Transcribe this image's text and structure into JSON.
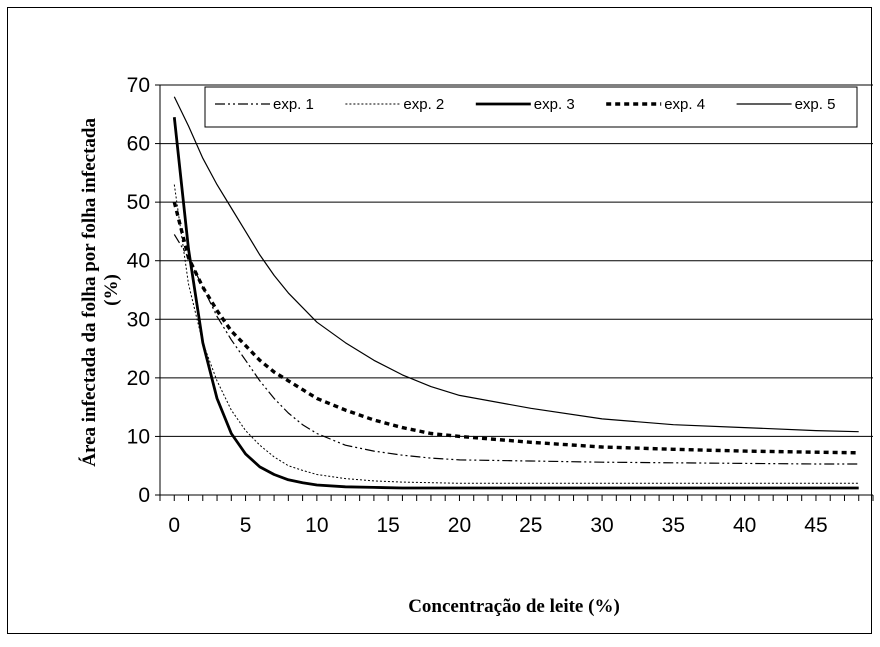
{
  "chart_data": {
    "type": "line",
    "title": "",
    "xlabel": "Concentração de leite (%)",
    "ylabel_line1": "Área infectada da folha por folha infectada",
    "ylabel_line2": "(%)",
    "xlim": [
      -1,
      49
    ],
    "ylim": [
      0,
      70
    ],
    "x_ticks": [
      0,
      5,
      10,
      15,
      20,
      25,
      30,
      35,
      40,
      45
    ],
    "y_ticks": [
      0,
      10,
      20,
      30,
      40,
      50,
      60,
      70
    ],
    "grid": "horizontal",
    "legend_position": "top",
    "series": [
      {
        "name": "exp. 1",
        "style": "dash-dot-dot",
        "x": [
          0,
          1,
          2,
          3,
          4,
          5,
          6,
          7,
          8,
          9,
          10,
          12,
          14,
          16,
          18,
          20,
          25,
          30,
          35,
          40,
          45,
          48
        ],
        "y": [
          44.5,
          40.5,
          35.5,
          30.5,
          26.5,
          23,
          19.5,
          16.5,
          14,
          12,
          10.5,
          8.5,
          7.5,
          6.8,
          6.3,
          6,
          5.8,
          5.6,
          5.5,
          5.4,
          5.3,
          5.3
        ]
      },
      {
        "name": "exp. 2",
        "style": "dotted",
        "x": [
          0,
          1,
          2,
          3,
          4,
          5,
          6,
          7,
          8,
          9,
          10,
          12,
          14,
          16,
          18,
          20,
          25,
          30,
          35,
          40,
          45,
          48
        ],
        "y": [
          53,
          36,
          26,
          19.5,
          14.5,
          11,
          8.5,
          6.5,
          5,
          4.2,
          3.5,
          2.8,
          2.4,
          2.2,
          2.1,
          2,
          2,
          2,
          2,
          2,
          2,
          2
        ]
      },
      {
        "name": "exp. 3",
        "style": "thick",
        "x": [
          0,
          1,
          2,
          3,
          4,
          5,
          6,
          7,
          8,
          9,
          10,
          12,
          14,
          16,
          18,
          20,
          25,
          30,
          35,
          40,
          45,
          48
        ],
        "y": [
          64.5,
          42,
          26,
          16.5,
          10.5,
          7,
          4.8,
          3.5,
          2.6,
          2.1,
          1.7,
          1.4,
          1.3,
          1.2,
          1.2,
          1.2,
          1.2,
          1.2,
          1.2,
          1.2,
          1.2,
          1.2
        ]
      },
      {
        "name": "exp. 4",
        "style": "thick-dotted",
        "x": [
          0,
          1,
          2,
          3,
          4,
          5,
          6,
          7,
          8,
          9,
          10,
          12,
          14,
          16,
          18,
          20,
          25,
          30,
          35,
          40,
          45,
          48
        ],
        "y": [
          50,
          40.5,
          35.5,
          31.5,
          28,
          25.5,
          23,
          21,
          19.5,
          18,
          16.5,
          14.5,
          12.8,
          11.5,
          10.5,
          10,
          9,
          8.2,
          7.8,
          7.5,
          7.3,
          7.2
        ]
      },
      {
        "name": "exp. 5",
        "style": "thin",
        "x": [
          0,
          1,
          2,
          3,
          4,
          5,
          6,
          7,
          8,
          9,
          10,
          12,
          14,
          16,
          18,
          20,
          25,
          30,
          35,
          40,
          45,
          48
        ],
        "y": [
          68,
          63,
          57.5,
          53,
          49,
          45,
          41,
          37.5,
          34.5,
          32,
          29.5,
          26,
          23,
          20.5,
          18.5,
          17,
          14.8,
          13,
          12,
          11.5,
          11,
          10.8
        ]
      }
    ]
  }
}
